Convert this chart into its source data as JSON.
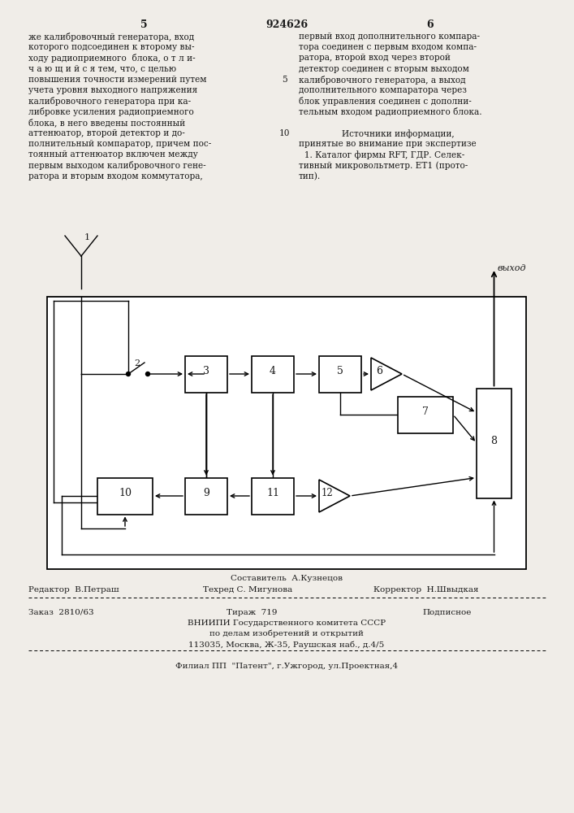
{
  "page_number_left": "5",
  "patent_number": "924626",
  "page_number_right": "6",
  "text_left_lines": [
    "же калибровочный генератора, вход",
    "которого подсоединен к второму вы-",
    "ходу радиоприемного  блока, о т л и-",
    "ч а ю щ и й с я тем, что, с целью",
    "повышения точности измерений путем",
    "учета уровня выходного напряжения",
    "калибровочного генератора при ка-",
    "либровке усиления радиоприемного",
    "блока, в него введены постоянный",
    "аттенюатор, второй детектор и до-",
    "полнительный компаратор, причем пос-",
    "тоянный аттенюатор включен между",
    "первым выходом калибровочного гене-",
    "ратора и вторым входом коммутатора,"
  ],
  "text_right_lines": [
    "первый вход дополнительного компара-",
    "тора соединен с первым входом компа-",
    "ратора, второй вход через второй",
    "детектор соединен с вторым выходом",
    "калибровочного генератора, а выход",
    "дополнительного компаратора через",
    "блок управления соединен с дополни-",
    "тельным входом радиоприемного блока."
  ],
  "text_right2_lines": [
    "Источники информации,",
    "принятые во внимание при экспертизе",
    "  1. Каталог фирмы RFT, ГДР. Селек-",
    "тивный микровольтметр. ЕТ1 (прото-",
    "тип)."
  ],
  "line_num_5": "5",
  "line_num_10": "10",
  "editor_line": "Редактор  В.Петраш",
  "composer_above": "Составитель  А.Кузнецов",
  "techred_line": "Техред С. Мигунова",
  "corrector_line": "Корректор  Н.Швыдкая",
  "order_line": "Заказ  2810/63",
  "tirazh_line": "Тираж  719",
  "podpisnoe_line": "Подписное",
  "vniip_line1": "ВНИИПИ Государственного комитета СССР",
  "vniip_line2": "по делам изобретений и открытий",
  "vniip_line3": "113035, Москва, Ж-35, Раушская наб., д.4/5",
  "filial_line": "Филиал ПП  \"Патент\", г.Ужгород, ул.Проектная,4",
  "bg_color": "#f0ede8",
  "text_color": "#1a1a1a"
}
